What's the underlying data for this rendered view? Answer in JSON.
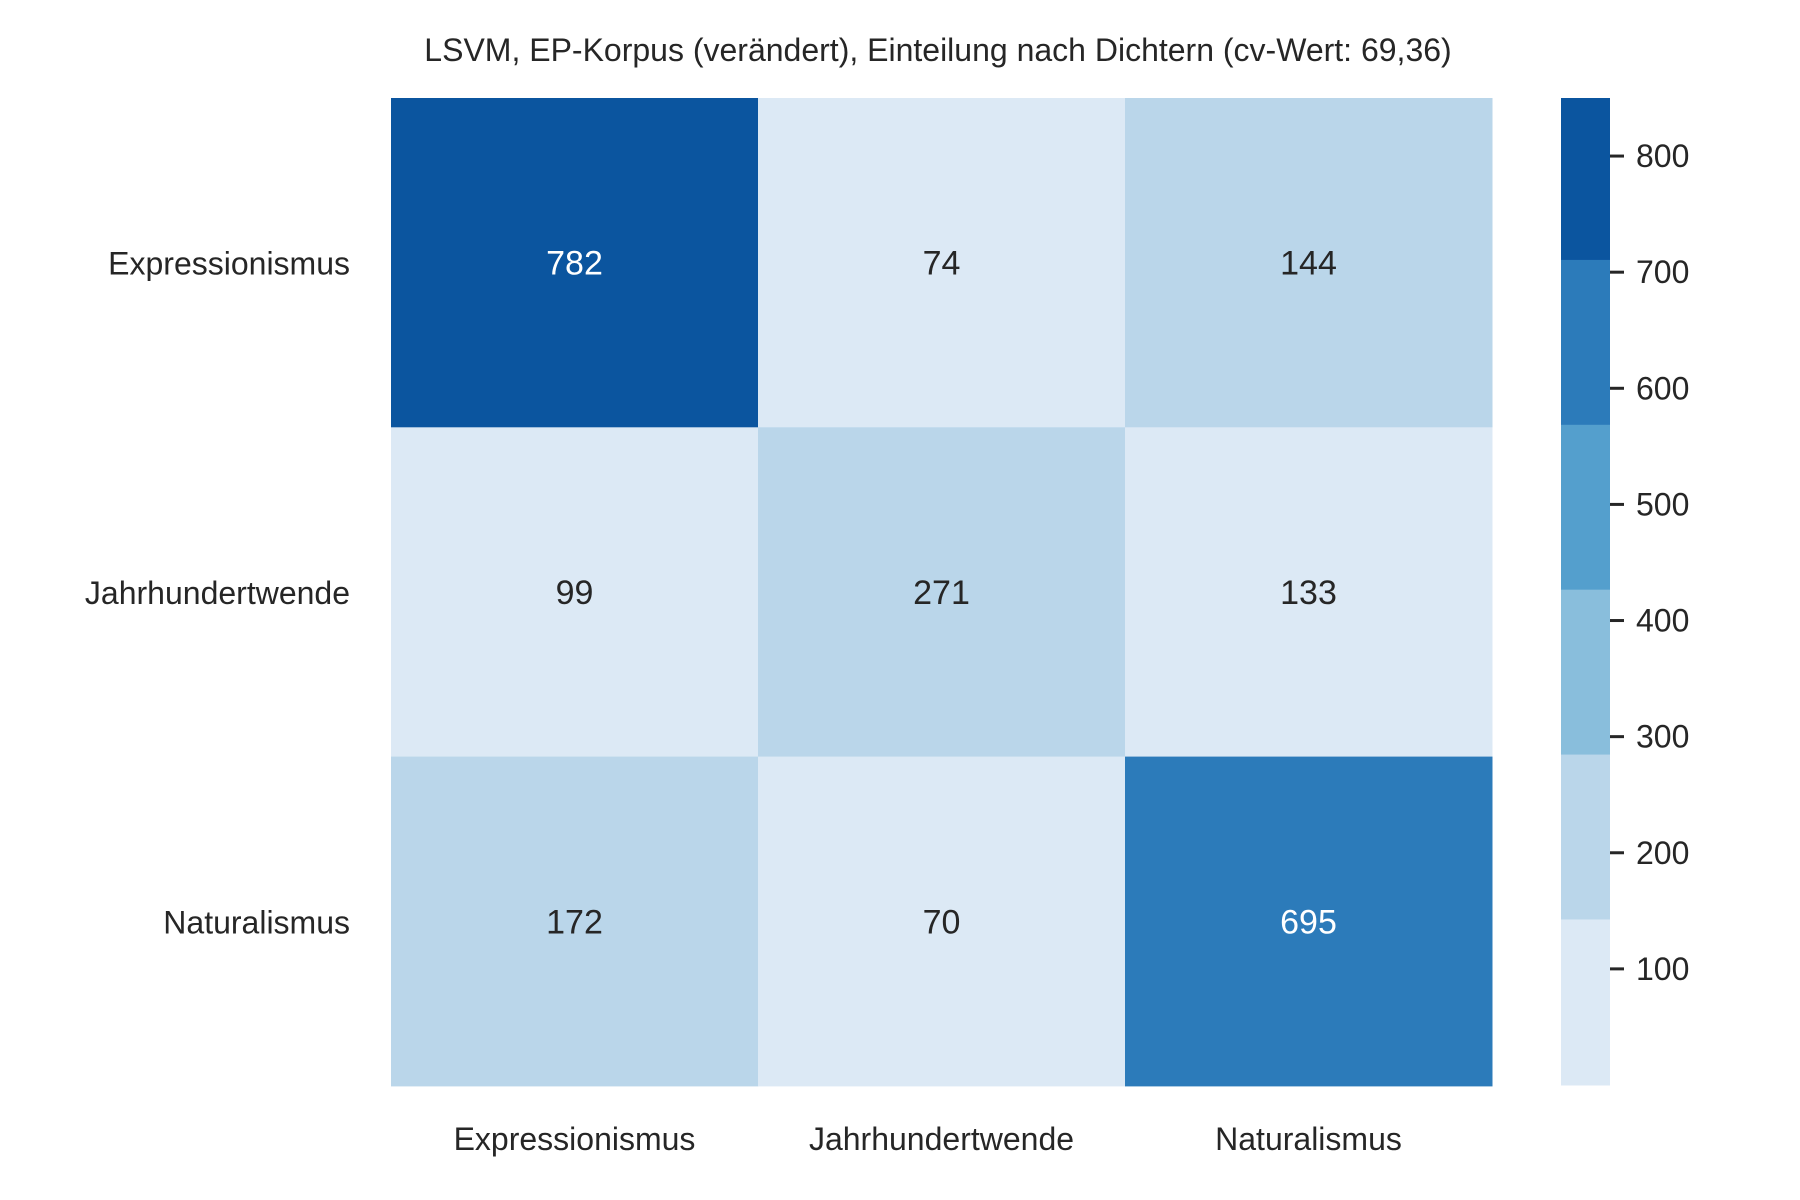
{
  "chart_data": {
    "type": "heatmap",
    "title": "LSVM, EP-Korpus (verändert), Einteilung nach Dichtern (cv-Wert: 69,36)",
    "xlabel": "",
    "ylabel": "",
    "rows": [
      "Expressionismus",
      "Jahrhundertwende",
      "Naturalismus"
    ],
    "columns": [
      "Expressionismus",
      "Jahrhundertwende",
      "Naturalismus"
    ],
    "values": [
      [
        782,
        74,
        144
      ],
      [
        99,
        271,
        133
      ],
      [
        172,
        70,
        695
      ]
    ],
    "colorbar": {
      "range": [
        0,
        850
      ],
      "ticks": [
        100,
        200,
        300,
        400,
        500,
        600,
        700,
        800
      ],
      "bands": [
        {
          "from": 0,
          "to": 143,
          "color": "#dce9f5"
        },
        {
          "from": 143,
          "to": 285,
          "color": "#bad6ea"
        },
        {
          "from": 285,
          "to": 427,
          "color": "#89bedc"
        },
        {
          "from": 427,
          "to": 569,
          "color": "#549fcd"
        },
        {
          "from": 569,
          "to": 711,
          "color": "#2c7bba"
        },
        {
          "from": 711,
          "to": 850,
          "color": "#0b559f"
        }
      ]
    },
    "grid": false,
    "legend": "colorbar-right"
  }
}
